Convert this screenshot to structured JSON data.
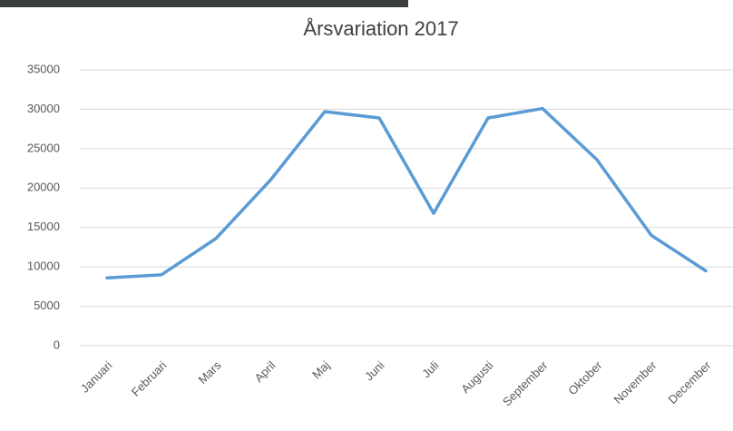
{
  "chart_data": {
    "type": "line",
    "title": "Årsvariation 2017",
    "categories": [
      "Januari",
      "Februari",
      "Mars",
      "April",
      "Maj",
      "Juni",
      "Juli",
      "Augusti",
      "September",
      "Oktober",
      "November",
      "December"
    ],
    "series": [
      {
        "color": "#5b9bd5",
        "values": [
          8600,
          9000,
          13600,
          21000,
          29700,
          28900,
          16800,
          28900,
          30100,
          23600,
          14000,
          9500
        ]
      }
    ],
    "ylim": [
      0,
      35000
    ],
    "yticks": [
      0,
      5000,
      10000,
      15000,
      20000,
      25000,
      30000,
      35000
    ],
    "grid": true
  }
}
